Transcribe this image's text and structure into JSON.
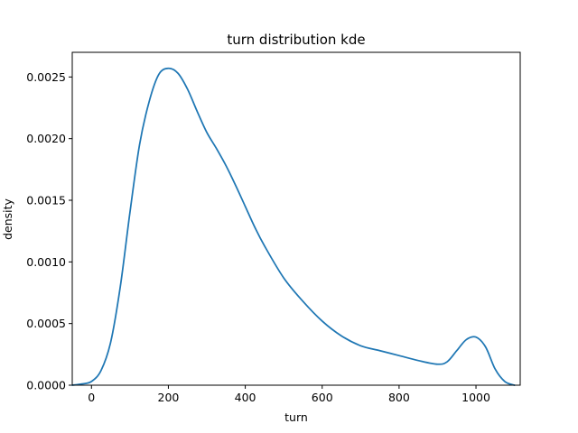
{
  "chart_data": {
    "type": "line",
    "title": "turn distribution kde",
    "xlabel": "turn",
    "ylabel": "density",
    "xlim": [
      -50,
      1115
    ],
    "ylim": [
      0,
      0.0027
    ],
    "x_ticks": [
      0,
      200,
      400,
      600,
      800,
      1000
    ],
    "x_tick_labels": [
      "0",
      "200",
      "400",
      "600",
      "800",
      "1000"
    ],
    "y_ticks": [
      0,
      0.0005,
      0.001,
      0.0015,
      0.002,
      0.0025
    ],
    "y_tick_labels": [
      "0.0000",
      "0.0005",
      "0.0010",
      "0.0015",
      "0.0020",
      "0.0025"
    ],
    "grid": false,
    "line_color": "#1f77b4",
    "series": [
      {
        "x": [
          -50,
          -25,
          0,
          25,
          50,
          75,
          100,
          125,
          150,
          175,
          200,
          225,
          250,
          275,
          300,
          325,
          350,
          375,
          400,
          425,
          450,
          500,
          550,
          600,
          650,
          700,
          750,
          800,
          850,
          900,
          925,
          950,
          975,
          1000,
          1025,
          1050,
          1075,
          1100
        ],
        "y": [
          0.0,
          1e-05,
          3e-05,
          0.00012,
          0.00035,
          0.0008,
          0.0014,
          0.00195,
          0.0023,
          0.00252,
          0.00257,
          0.00253,
          0.0024,
          0.00222,
          0.00205,
          0.00192,
          0.00178,
          0.00162,
          0.00145,
          0.00128,
          0.00113,
          0.00087,
          0.00068,
          0.00052,
          0.0004,
          0.00032,
          0.00028,
          0.00024,
          0.0002,
          0.00017,
          0.00019,
          0.00028,
          0.00037,
          0.00039,
          0.00031,
          0.00013,
          3e-05,
          0.0
        ]
      }
    ]
  }
}
